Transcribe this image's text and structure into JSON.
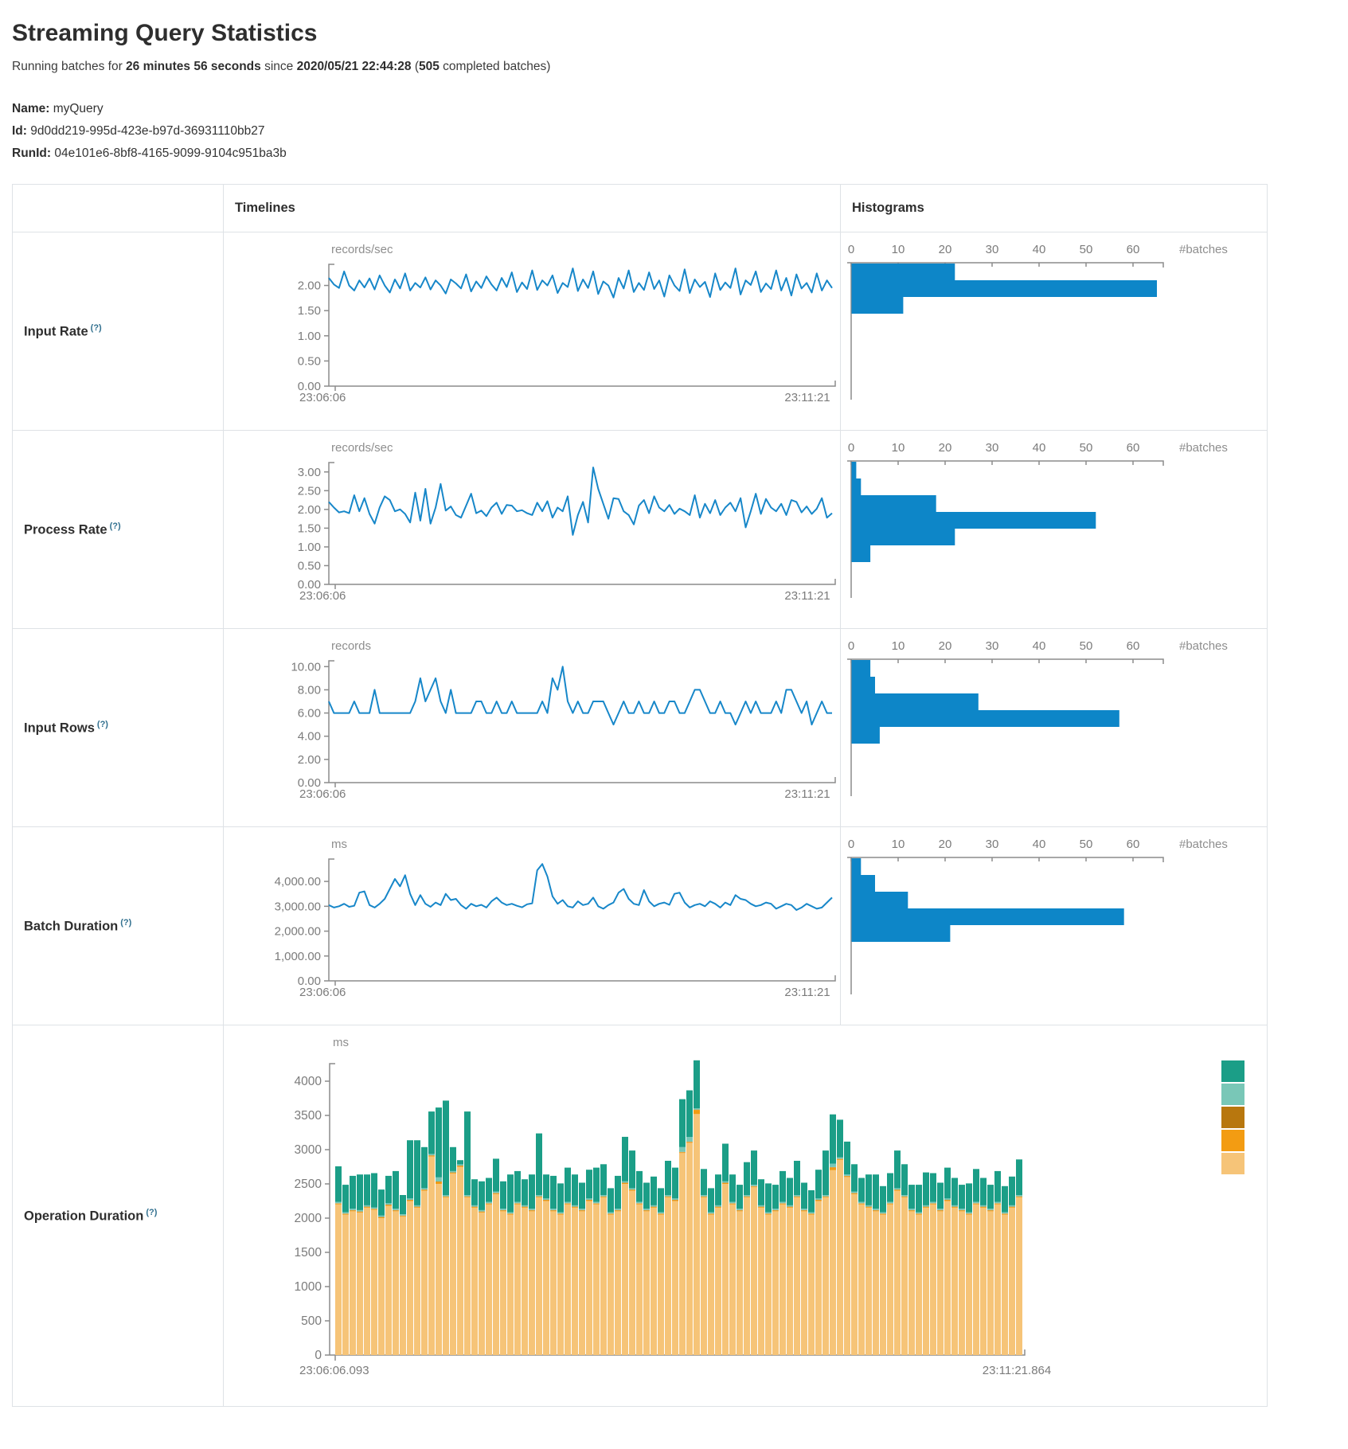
{
  "header": {
    "title": "Streaming Query Statistics",
    "subtitle": {
      "prefix": "Running batches for ",
      "duration": "26 minutes 56 seconds",
      "mid": " since ",
      "start_time": "2020/05/21 22:44:28",
      "paren_open": " (",
      "completed_batches": "505",
      "suffix": " completed batches)"
    }
  },
  "meta": {
    "name_label": "Name:",
    "name_value": "myQuery",
    "id_label": "Id:",
    "id_value": "9d0dd219-995d-423e-b97d-36931110bb27",
    "runid_label": "RunId:",
    "runid_value": "04e101e6-8bf8-4165-9099-9104c951ba3b"
  },
  "table": {
    "col_timelines": "Timelines",
    "col_histograms": "Histograms",
    "rows": [
      {
        "label": "Input Rate",
        "help": "(?)"
      },
      {
        "label": "Process Rate",
        "help": "(?)"
      },
      {
        "label": "Input Rows",
        "help": "(?)"
      },
      {
        "label": "Batch Duration",
        "help": "(?)"
      },
      {
        "label": "Operation Duration",
        "help": "(?)"
      }
    ]
  },
  "colors": {
    "line": "#1787c9",
    "bar": "#0d86c8",
    "axis": "#8c8c8c",
    "tick_text": "#7b7b7b",
    "unit_text": "#8e8e8e"
  },
  "chart_data": {
    "input_rate_timeline": {
      "type": "line",
      "unit": "records/sec",
      "x_start_label": "23:06:06",
      "x_end_label": "23:11:21",
      "ymax_axis": 2.42,
      "yticks": [
        {
          "v": 0,
          "label": "0.00"
        },
        {
          "v": 0.5,
          "label": "0.50"
        },
        {
          "v": 1,
          "label": "1.00"
        },
        {
          "v": 1.5,
          "label": "1.50"
        },
        {
          "v": 2,
          "label": "2.00"
        }
      ],
      "values": [
        2.15,
        2.02,
        1.95,
        2.28,
        2.0,
        1.9,
        2.1,
        1.96,
        2.14,
        1.92,
        2.2,
        2.0,
        1.86,
        2.12,
        1.94,
        2.24,
        1.9,
        2.05,
        1.96,
        2.16,
        1.92,
        2.1,
        2.0,
        1.84,
        2.12,
        2.04,
        1.94,
        2.22,
        1.88,
        2.08,
        1.95,
        2.18,
        2.02,
        1.9,
        2.15,
        1.97,
        2.26,
        1.87,
        2.06,
        1.93,
        2.3,
        1.91,
        2.1,
        2.0,
        2.2,
        1.85,
        2.05,
        1.97,
        2.34,
        1.89,
        2.12,
        1.95,
        2.28,
        1.83,
        2.08,
        2.0,
        1.76,
        2.15,
        1.94,
        2.3,
        1.87,
        2.05,
        1.91,
        2.26,
        1.93,
        2.1,
        1.78,
        2.2,
        2.0,
        1.89,
        2.32,
        1.85,
        2.12,
        1.97,
        2.07,
        1.77,
        2.24,
        1.91,
        2.06,
        1.95,
        2.34,
        1.82,
        2.1,
        2.01,
        2.28,
        1.87,
        2.04,
        1.93,
        2.3,
        1.9,
        2.15,
        1.8,
        2.22,
        1.94,
        2.05,
        1.86,
        2.24,
        1.9,
        2.1,
        1.95
      ]
    },
    "input_rate_histogram": {
      "type": "hbar",
      "end_label": "#batches",
      "xticks": [
        "0",
        "10",
        "20",
        "30",
        "40",
        "50",
        "60"
      ],
      "values": [
        22,
        65,
        11
      ]
    },
    "process_rate_timeline": {
      "type": "line",
      "unit": "records/sec",
      "x_start_label": "23:06:06",
      "x_end_label": "23:11:21",
      "ymax_axis": 3.25,
      "yticks": [
        {
          "v": 0,
          "label": "0.00"
        },
        {
          "v": 0.5,
          "label": "0.50"
        },
        {
          "v": 1,
          "label": "1.00"
        },
        {
          "v": 1.5,
          "label": "1.50"
        },
        {
          "v": 2,
          "label": "2.00"
        },
        {
          "v": 2.5,
          "label": "2.50"
        },
        {
          "v": 3,
          "label": "3.00"
        }
      ],
      "values": [
        2.2,
        2.05,
        1.92,
        1.95,
        1.9,
        2.38,
        1.95,
        2.3,
        1.88,
        1.62,
        2.05,
        2.35,
        2.25,
        1.95,
        2.0,
        1.88,
        1.65,
        2.45,
        1.7,
        2.55,
        1.62,
        2.05,
        2.68,
        1.97,
        2.08,
        1.85,
        1.78,
        2.1,
        2.42,
        1.9,
        1.97,
        1.82,
        2.05,
        2.18,
        1.88,
        2.12,
        2.1,
        1.95,
        1.98,
        1.9,
        1.85,
        2.18,
        1.95,
        2.22,
        1.78,
        2.05,
        1.95,
        2.35,
        1.32,
        1.85,
        2.2,
        1.65,
        3.12,
        2.55,
        2.15,
        1.75,
        2.3,
        2.28,
        1.95,
        1.85,
        1.6,
        2.1,
        2.25,
        1.9,
        2.35,
        2.05,
        1.95,
        2.12,
        1.88,
        2.02,
        1.95,
        1.85,
        2.38,
        1.78,
        2.15,
        1.9,
        2.25,
        1.85,
        2.05,
        2.18,
        1.95,
        2.3,
        1.52,
        1.95,
        2.42,
        1.88,
        2.28,
        2.05,
        1.95,
        2.15,
        1.85,
        2.25,
        2.2,
        1.92,
        2.08,
        1.88,
        2.02,
        2.3,
        1.78,
        1.9
      ]
    },
    "process_rate_histogram": {
      "type": "hbar",
      "end_label": "#batches",
      "xticks": [
        "0",
        "10",
        "20",
        "30",
        "40",
        "50",
        "60"
      ],
      "values": [
        1,
        2,
        18,
        52,
        22,
        4
      ]
    },
    "input_rows_timeline": {
      "type": "line",
      "unit": "records",
      "x_start_label": "23:06:06",
      "x_end_label": "23:11:21",
      "ymax_axis": 10.5,
      "yticks": [
        {
          "v": 0,
          "label": "0.00"
        },
        {
          "v": 2,
          "label": "2.00"
        },
        {
          "v": 4,
          "label": "4.00"
        },
        {
          "v": 6,
          "label": "6.00"
        },
        {
          "v": 8,
          "label": "8.00"
        },
        {
          "v": 10,
          "label": "10.00"
        }
      ],
      "values": [
        7,
        6,
        6,
        6,
        6,
        7,
        6,
        6,
        6,
        8,
        6,
        6,
        6,
        6,
        6,
        6,
        6,
        7,
        9,
        7,
        8,
        9,
        7,
        6,
        8,
        6,
        6,
        6,
        6,
        7,
        7,
        6,
        6,
        7,
        6,
        6,
        7,
        6,
        6,
        6,
        6,
        6,
        7,
        6,
        9,
        8,
        10,
        7,
        6,
        7,
        6,
        6,
        7,
        7,
        7,
        6,
        5,
        6,
        7,
        6,
        6,
        7,
        6,
        6,
        7,
        6,
        6,
        7,
        7,
        6,
        6,
        7,
        8,
        8,
        7,
        6,
        6,
        7,
        6,
        6,
        5,
        6,
        7,
        6,
        7,
        6,
        6,
        6,
        7,
        6,
        8,
        8,
        7,
        6,
        7,
        5,
        6,
        7,
        6,
        6
      ]
    },
    "input_rows_histogram": {
      "type": "hbar",
      "end_label": "#batches",
      "xticks": [
        "0",
        "10",
        "20",
        "30",
        "40",
        "50",
        "60"
      ],
      "values": [
        4,
        5,
        27,
        57,
        6
      ]
    },
    "batch_duration_timeline": {
      "type": "line",
      "unit": "ms",
      "x_start_label": "23:06:06",
      "x_end_label": "23:11:21",
      "ymax_axis": 4900,
      "yticks": [
        {
          "v": 0,
          "label": "0.00"
        },
        {
          "v": 1000,
          "label": "1,000.00"
        },
        {
          "v": 2000,
          "label": "2,000.00"
        },
        {
          "v": 3000,
          "label": "3,000.00"
        },
        {
          "v": 4000,
          "label": "4,000.00"
        }
      ],
      "values": [
        3050,
        2950,
        3000,
        3100,
        2980,
        3020,
        3550,
        3600,
        3050,
        2950,
        3100,
        3300,
        3700,
        4100,
        3800,
        4250,
        3500,
        3050,
        3450,
        3100,
        2980,
        3150,
        3050,
        3500,
        3250,
        3300,
        3050,
        2900,
        3100,
        3000,
        3060,
        2950,
        3200,
        3350,
        3150,
        3050,
        3100,
        3020,
        2960,
        3080,
        3120,
        4450,
        4700,
        4200,
        3400,
        3100,
        3250,
        3000,
        2950,
        3200,
        3050,
        3100,
        3350,
        3000,
        2900,
        3050,
        3150,
        3550,
        3700,
        3300,
        3100,
        3050,
        3650,
        3200,
        3000,
        3100,
        3150,
        3060,
        3500,
        3550,
        3150,
        2950,
        3050,
        3100,
        3000,
        3200,
        3100,
        2950,
        3150,
        3050,
        3450,
        3300,
        3250,
        3100,
        3000,
        3050,
        3150,
        3100,
        2900,
        3000,
        3100,
        3050,
        2850,
        2950,
        3100,
        3000,
        2900,
        2950,
        3150,
        3350
      ]
    },
    "batch_duration_histogram": {
      "type": "hbar",
      "end_label": "#batches",
      "xticks": [
        "0",
        "10",
        "20",
        "30",
        "40",
        "50",
        "60"
      ],
      "values": [
        2,
        5,
        12,
        58,
        21
      ]
    },
    "operation_duration": {
      "type": "stacked",
      "unit": "ms",
      "x_start_label": "23:06:06.093",
      "x_end_label": "23:11:21.864",
      "ymax_axis": 4256,
      "yticks": [
        {
          "v": 0,
          "label": "0"
        },
        {
          "v": 500,
          "label": "500"
        },
        {
          "v": 1000,
          "label": "1000"
        },
        {
          "v": 1500,
          "label": "1500"
        },
        {
          "v": 2000,
          "label": "2000"
        },
        {
          "v": 2500,
          "label": "2500"
        },
        {
          "v": 3000,
          "label": "3000"
        },
        {
          "v": 3500,
          "label": "3500"
        },
        {
          "v": 4000,
          "label": "4000"
        }
      ],
      "legend": [
        {
          "name": "teal-green",
          "color": "#1b9e87"
        },
        {
          "name": "light-teal",
          "color": "#79c7b7"
        },
        {
          "name": "dark-amber",
          "color": "#b8770e"
        },
        {
          "name": "orange",
          "color": "#f39c12"
        },
        {
          "name": "light-amber",
          "color": "#f6c478"
        }
      ],
      "series": [
        {
          "name": "light-amber",
          "color": "#f6c478",
          "values": [
            2200,
            2050,
            2100,
            2080,
            2150,
            2120,
            2000,
            2180,
            2100,
            2020,
            2250,
            2150,
            2400,
            2900,
            2500,
            2300,
            2650,
            2750,
            2300,
            2150,
            2080,
            2200,
            2350,
            2100,
            2050,
            2200,
            2150,
            2100,
            2300,
            2250,
            2100,
            2050,
            2200,
            2150,
            2100,
            2250,
            2200,
            2300,
            2050,
            2100,
            2500,
            2400,
            2200,
            2100,
            2150,
            2050,
            2300,
            2250,
            2950,
            3100,
            3520,
            2300,
            2050,
            2150,
            2500,
            2200,
            2100,
            2300,
            2450,
            2150,
            2050,
            2100,
            2200,
            2150,
            2300,
            2100,
            2050,
            2250,
            2300,
            2700,
            2850,
            2600,
            2350,
            2200,
            2150,
            2100,
            2050,
            2200,
            2400,
            2300,
            2100,
            2050,
            2150,
            2200,
            2100,
            2250,
            2150,
            2100,
            2050,
            2200,
            2150,
            2100,
            2200,
            2050,
            2150,
            2300
          ]
        },
        {
          "name": "orange",
          "color": "#f39c12",
          "values": [
            12,
            12,
            12,
            12,
            12,
            12,
            12,
            12,
            12,
            12,
            12,
            12,
            12,
            12,
            30,
            12,
            12,
            12,
            12,
            12,
            12,
            12,
            12,
            12,
            12,
            12,
            12,
            12,
            12,
            12,
            12,
            12,
            12,
            12,
            12,
            12,
            12,
            12,
            12,
            12,
            12,
            12,
            12,
            12,
            12,
            12,
            12,
            12,
            12,
            12,
            60,
            12,
            12,
            12,
            12,
            12,
            12,
            12,
            12,
            12,
            12,
            12,
            12,
            12,
            12,
            12,
            12,
            12,
            12,
            40,
            12,
            12,
            12,
            12,
            12,
            12,
            12,
            12,
            12,
            12,
            12,
            12,
            12,
            12,
            12,
            12,
            12,
            12,
            12,
            12,
            12,
            12,
            12,
            12,
            12,
            12
          ]
        },
        {
          "name": "dark-amber",
          "color": "#b8770e",
          "values": [
            5,
            5,
            5,
            5,
            5,
            5,
            5,
            5,
            5,
            5,
            5,
            5,
            5,
            5,
            5,
            5,
            5,
            5,
            5,
            5,
            5,
            5,
            5,
            5,
            5,
            5,
            5,
            5,
            5,
            5,
            5,
            5,
            5,
            5,
            5,
            5,
            5,
            5,
            5,
            5,
            5,
            5,
            5,
            5,
            5,
            5,
            5,
            5,
            5,
            5,
            5,
            5,
            5,
            5,
            5,
            5,
            5,
            5,
            5,
            5,
            5,
            5,
            5,
            5,
            5,
            5,
            5,
            5,
            5,
            5,
            5,
            5,
            5,
            5,
            5,
            5,
            5,
            5,
            5,
            5,
            5,
            5,
            5,
            5,
            5,
            5,
            5,
            5,
            5,
            5,
            5,
            5,
            5,
            5,
            5,
            5
          ]
        },
        {
          "name": "light-teal",
          "color": "#79c7b7",
          "values": [
            20,
            20,
            20,
            20,
            20,
            20,
            20,
            20,
            20,
            20,
            20,
            20,
            20,
            20,
            60,
            20,
            20,
            20,
            20,
            20,
            20,
            20,
            20,
            20,
            20,
            20,
            20,
            20,
            20,
            20,
            20,
            20,
            20,
            20,
            20,
            20,
            20,
            20,
            20,
            20,
            20,
            20,
            20,
            20,
            20,
            20,
            20,
            20,
            70,
            70,
            20,
            20,
            20,
            20,
            20,
            20,
            20,
            20,
            20,
            20,
            20,
            20,
            20,
            20,
            20,
            20,
            20,
            20,
            20,
            50,
            20,
            20,
            20,
            20,
            20,
            20,
            20,
            20,
            20,
            20,
            20,
            20,
            20,
            20,
            20,
            20,
            20,
            20,
            20,
            20,
            20,
            20,
            20,
            20,
            20,
            20
          ]
        },
        {
          "name": "teal-green",
          "color": "#1b9e87",
          "values": [
            520,
            400,
            480,
            520,
            450,
            500,
            380,
            400,
            550,
            280,
            850,
            950,
            600,
            620,
            1020,
            1380,
            350,
            60,
            1220,
            380,
            420,
            350,
            480,
            400,
            550,
            450,
            380,
            500,
            900,
            350,
            480,
            420,
            500,
            450,
            380,
            420,
            500,
            450,
            350,
            480,
            650,
            550,
            450,
            380,
            420,
            350,
            500,
            450,
            700,
            680,
            700,
            380,
            350,
            450,
            550,
            400,
            350,
            480,
            500,
            380,
            420,
            350,
            450,
            400,
            500,
            380,
            320,
            420,
            650,
            720,
            550,
            480,
            400,
            350,
            450,
            500,
            380,
            420,
            550,
            450,
            350,
            400,
            480,
            420,
            380,
            450,
            400,
            350,
            420,
            480,
            400,
            350,
            450,
            380,
            420,
            520
          ]
        }
      ]
    }
  }
}
